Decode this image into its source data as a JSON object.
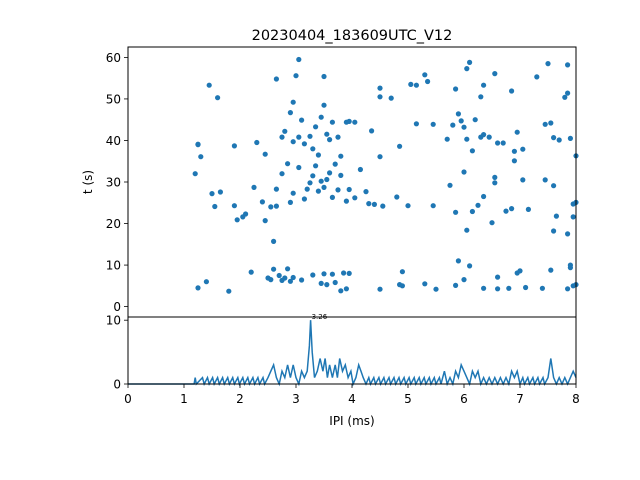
{
  "chart_data": [
    {
      "type": "scatter",
      "title": "20230404_183609UTC_V12",
      "xlabel": "",
      "ylabel": "t (s)",
      "xlim": [
        0,
        8
      ],
      "ylim": [
        62.5,
        -2.5
      ],
      "y_inverted": true,
      "yticks": [
        "0",
        "10",
        "20",
        "30",
        "40",
        "50",
        "60"
      ],
      "marker_color": "#1f77b4",
      "points": [
        [
          1.25,
          4.5
        ],
        [
          1.4,
          6
        ],
        [
          1.8,
          3.7
        ],
        [
          2.2,
          8.3
        ],
        [
          2.5,
          6.9
        ],
        [
          2.55,
          6.5
        ],
        [
          2.6,
          9
        ],
        [
          2.7,
          7.5
        ],
        [
          2.75,
          6.3
        ],
        [
          2.8,
          6.9
        ],
        [
          2.85,
          9.1
        ],
        [
          2.9,
          6.1
        ],
        [
          2.95,
          7
        ],
        [
          3.1,
          6.4
        ],
        [
          3.3,
          7.6
        ],
        [
          3.45,
          5.6
        ],
        [
          3.5,
          7.9
        ],
        [
          3.55,
          5.3
        ],
        [
          3.65,
          7.8
        ],
        [
          3.7,
          5.8
        ],
        [
          3.8,
          3.8
        ],
        [
          3.85,
          8.1
        ],
        [
          3.9,
          4.3
        ],
        [
          3.95,
          8
        ],
        [
          4.5,
          4.2
        ],
        [
          4.85,
          5.3
        ],
        [
          4.9,
          8.4
        ],
        [
          4.9,
          5
        ],
        [
          5.3,
          5.5
        ],
        [
          5.5,
          4.2
        ],
        [
          5.85,
          5.1
        ],
        [
          5.9,
          11
        ],
        [
          6.0,
          6.5
        ],
        [
          6.1,
          9.8
        ],
        [
          6.35,
          4.4
        ],
        [
          6.6,
          4.3
        ],
        [
          6.6,
          7.1
        ],
        [
          6.8,
          4.4
        ],
        [
          6.95,
          8.1
        ],
        [
          7.0,
          8.6
        ],
        [
          7.1,
          4.6
        ],
        [
          7.4,
          4.4
        ],
        [
          7.55,
          8.8
        ],
        [
          7.85,
          4.3
        ],
        [
          7.9,
          10
        ],
        [
          7.95,
          5
        ],
        [
          8.0,
          5.3
        ],
        [
          7.9,
          9.4
        ],
        [
          2.6,
          15.7
        ],
        [
          1.95,
          20.9
        ],
        [
          2.05,
          21.6
        ],
        [
          2.1,
          22.3
        ],
        [
          2.45,
          20.7
        ],
        [
          7.6,
          18.2
        ],
        [
          7.85,
          17.5
        ],
        [
          7.65,
          21.8
        ],
        [
          7.95,
          21.6
        ],
        [
          6.05,
          18.4
        ],
        [
          6.5,
          20.2
        ],
        [
          1.2,
          32
        ],
        [
          1.25,
          39
        ],
        [
          1.5,
          27.2
        ],
        [
          1.55,
          24.1
        ],
        [
          1.65,
          27.6
        ],
        [
          1.9,
          24.3
        ],
        [
          2.25,
          28.7
        ],
        [
          2.4,
          25.2
        ],
        [
          2.55,
          24
        ],
        [
          2.65,
          24.2
        ],
        [
          2.65,
          28.3
        ],
        [
          2.75,
          32
        ],
        [
          2.85,
          34.4
        ],
        [
          2.9,
          25.1
        ],
        [
          2.95,
          27.3
        ],
        [
          3.05,
          33.5
        ],
        [
          3.15,
          25.9
        ],
        [
          3.2,
          28.3
        ],
        [
          3.25,
          29.8
        ],
        [
          3.3,
          31.5
        ],
        [
          3.35,
          33.9
        ],
        [
          3.4,
          27.8
        ],
        [
          3.45,
          30.2
        ],
        [
          3.5,
          28.7
        ],
        [
          3.55,
          30.6
        ],
        [
          3.6,
          32.2
        ],
        [
          3.65,
          26.3
        ],
        [
          3.7,
          34.3
        ],
        [
          3.75,
          28.1
        ],
        [
          3.8,
          31.6
        ],
        [
          3.9,
          25.4
        ],
        [
          3.95,
          28.2
        ],
        [
          4.05,
          26.2
        ],
        [
          4.15,
          33
        ],
        [
          4.25,
          27.7
        ],
        [
          4.3,
          24.8
        ],
        [
          4.4,
          24.6
        ],
        [
          4.55,
          24.2
        ],
        [
          4.8,
          26.4
        ],
        [
          5.0,
          24.3
        ],
        [
          5.45,
          24.3
        ],
        [
          5.75,
          29.2
        ],
        [
          5.85,
          22.7
        ],
        [
          6.0,
          32.4
        ],
        [
          6.15,
          22.9
        ],
        [
          6.25,
          24.4
        ],
        [
          6.35,
          26.5
        ],
        [
          6.55,
          29.8
        ],
        [
          6.55,
          31.1
        ],
        [
          6.75,
          23
        ],
        [
          6.85,
          23.6
        ],
        [
          6.9,
          35.1
        ],
        [
          7.05,
          30.5
        ],
        [
          7.15,
          23.4
        ],
        [
          7.45,
          30.5
        ],
        [
          7.6,
          29.1
        ],
        [
          7.95,
          24.7
        ],
        [
          8.0,
          25.1
        ],
        [
          1.3,
          36.1
        ],
        [
          1.25,
          39.1
        ],
        [
          1.9,
          38.7
        ],
        [
          2.3,
          39.5
        ],
        [
          2.45,
          36.7
        ],
        [
          2.75,
          40.8
        ],
        [
          2.8,
          42.2
        ],
        [
          2.9,
          46.7
        ],
        [
          2.95,
          39.7
        ],
        [
          3.05,
          40.8
        ],
        [
          3.1,
          44.9
        ],
        [
          3.15,
          39.2
        ],
        [
          3.25,
          41
        ],
        [
          3.3,
          38
        ],
        [
          3.35,
          43.3
        ],
        [
          3.4,
          36.5
        ],
        [
          3.45,
          45.6
        ],
        [
          3.5,
          48.5
        ],
        [
          3.55,
          41.5
        ],
        [
          3.6,
          40.2
        ],
        [
          3.65,
          44.4
        ],
        [
          3.75,
          40.8
        ],
        [
          3.8,
          36.2
        ],
        [
          3.9,
          44.4
        ],
        [
          3.95,
          44.6
        ],
        [
          4.05,
          44.4
        ],
        [
          4.35,
          42.3
        ],
        [
          4.5,
          36.1
        ],
        [
          4.85,
          38.6
        ],
        [
          5.15,
          44
        ],
        [
          5.45,
          43.9
        ],
        [
          5.7,
          40.3
        ],
        [
          5.8,
          43.7
        ],
        [
          5.9,
          46.4
        ],
        [
          5.95,
          44.7
        ],
        [
          6.0,
          43.2
        ],
        [
          6.05,
          40.3
        ],
        [
          6.15,
          37.5
        ],
        [
          6.2,
          45
        ],
        [
          6.3,
          40.8
        ],
        [
          6.35,
          41.4
        ],
        [
          6.45,
          40.8
        ],
        [
          6.6,
          39.4
        ],
        [
          6.7,
          39.4
        ],
        [
          6.9,
          37.4
        ],
        [
          6.95,
          42
        ],
        [
          7.05,
          37.9
        ],
        [
          7.45,
          43.9
        ],
        [
          7.55,
          44.2
        ],
        [
          7.6,
          40.7
        ],
        [
          7.7,
          40.1
        ],
        [
          7.9,
          40.5
        ],
        [
          8.0,
          36.3
        ],
        [
          1.45,
          53.3
        ],
        [
          1.6,
          50.3
        ],
        [
          2.65,
          54.8
        ],
        [
          2.95,
          49.2
        ],
        [
          3.0,
          55.6
        ],
        [
          3.05,
          59.5
        ],
        [
          3.5,
          55.4
        ],
        [
          4.5,
          50.5
        ],
        [
          4.5,
          52.6
        ],
        [
          4.7,
          50.2
        ],
        [
          5.05,
          53.5
        ],
        [
          5.15,
          53.3
        ],
        [
          5.3,
          55.8
        ],
        [
          5.35,
          54.2
        ],
        [
          5.85,
          52.4
        ],
        [
          6.05,
          57.3
        ],
        [
          6.1,
          58.8
        ],
        [
          6.3,
          50.5
        ],
        [
          6.35,
          53.3
        ],
        [
          6.55,
          56.1
        ],
        [
          6.85,
          51.9
        ],
        [
          7.3,
          55.3
        ],
        [
          7.5,
          58.5
        ],
        [
          7.8,
          50.4
        ],
        [
          7.85,
          51.4
        ],
        [
          7.85,
          58.2
        ]
      ]
    },
    {
      "type": "line",
      "xlabel": "IPI (ms)",
      "ylabel": "",
      "xlim": [
        0,
        8
      ],
      "ylim": [
        0,
        10.5
      ],
      "xticks": [
        "0",
        "1",
        "2",
        "3",
        "4",
        "5",
        "6",
        "7",
        "8"
      ],
      "yticks": [
        "0",
        "10"
      ],
      "line_color": "#1f77b4",
      "peak_label": "3.26",
      "peak": [
        3.26,
        10
      ],
      "points": [
        [
          0,
          0
        ],
        [
          1.18,
          0
        ],
        [
          1.2,
          1
        ],
        [
          1.22,
          0
        ],
        [
          1.33,
          1
        ],
        [
          1.36,
          0
        ],
        [
          1.42,
          1
        ],
        [
          1.45,
          0
        ],
        [
          1.51,
          1
        ],
        [
          1.54,
          0
        ],
        [
          1.6,
          1
        ],
        [
          1.63,
          0
        ],
        [
          1.69,
          1
        ],
        [
          1.72,
          0
        ],
        [
          1.78,
          1
        ],
        [
          1.81,
          0
        ],
        [
          1.87,
          1
        ],
        [
          1.9,
          0
        ],
        [
          1.96,
          1
        ],
        [
          1.99,
          0
        ],
        [
          2.05,
          1
        ],
        [
          2.08,
          0
        ],
        [
          2.14,
          1
        ],
        [
          2.17,
          0
        ],
        [
          2.23,
          1
        ],
        [
          2.26,
          0
        ],
        [
          2.32,
          1
        ],
        [
          2.35,
          0
        ],
        [
          2.41,
          1
        ],
        [
          2.44,
          0
        ],
        [
          2.5,
          1
        ],
        [
          2.55,
          2
        ],
        [
          2.6,
          3
        ],
        [
          2.65,
          1
        ],
        [
          2.7,
          0
        ],
        [
          2.75,
          2
        ],
        [
          2.8,
          1
        ],
        [
          2.85,
          3
        ],
        [
          2.9,
          1
        ],
        [
          2.95,
          3
        ],
        [
          3.0,
          1
        ],
        [
          3.05,
          0
        ],
        [
          3.1,
          2
        ],
        [
          3.15,
          1
        ],
        [
          3.2,
          2
        ],
        [
          3.24,
          6
        ],
        [
          3.26,
          10
        ],
        [
          3.29,
          5
        ],
        [
          3.33,
          1
        ],
        [
          3.38,
          2
        ],
        [
          3.43,
          4
        ],
        [
          3.48,
          2
        ],
        [
          3.52,
          4
        ],
        [
          3.56,
          1
        ],
        [
          3.6,
          3
        ],
        [
          3.65,
          1
        ],
        [
          3.7,
          3
        ],
        [
          3.74,
          1
        ],
        [
          3.78,
          4
        ],
        [
          3.83,
          2
        ],
        [
          3.88,
          3
        ],
        [
          3.93,
          1
        ],
        [
          3.98,
          2
        ],
        [
          4.02,
          0
        ],
        [
          4.07,
          1
        ],
        [
          4.12,
          3
        ],
        [
          4.16,
          2
        ],
        [
          4.2,
          1
        ],
        [
          4.25,
          0
        ],
        [
          4.3,
          1
        ],
        [
          4.33,
          0
        ],
        [
          4.39,
          1
        ],
        [
          4.42,
          0
        ],
        [
          4.48,
          1
        ],
        [
          4.51,
          0
        ],
        [
          4.57,
          1
        ],
        [
          4.6,
          0
        ],
        [
          4.66,
          1
        ],
        [
          4.69,
          0
        ],
        [
          4.75,
          1
        ],
        [
          4.78,
          0
        ],
        [
          4.84,
          1
        ],
        [
          4.87,
          0
        ],
        [
          4.93,
          1
        ],
        [
          4.96,
          0
        ],
        [
          5.02,
          1
        ],
        [
          5.05,
          0
        ],
        [
          5.11,
          1
        ],
        [
          5.14,
          0
        ],
        [
          5.2,
          1
        ],
        [
          5.23,
          0
        ],
        [
          5.29,
          1
        ],
        [
          5.32,
          0
        ],
        [
          5.38,
          1
        ],
        [
          5.41,
          0
        ],
        [
          5.47,
          1
        ],
        [
          5.5,
          0
        ],
        [
          5.56,
          1
        ],
        [
          5.59,
          0
        ],
        [
          5.65,
          2
        ],
        [
          5.7,
          0
        ],
        [
          5.75,
          1
        ],
        [
          5.8,
          0
        ],
        [
          5.85,
          2
        ],
        [
          5.9,
          1
        ],
        [
          5.95,
          3
        ],
        [
          6.0,
          2
        ],
        [
          6.05,
          1
        ],
        [
          6.1,
          0
        ],
        [
          6.15,
          2
        ],
        [
          6.2,
          1
        ],
        [
          6.25,
          2
        ],
        [
          6.3,
          0
        ],
        [
          6.35,
          1
        ],
        [
          6.4,
          0
        ],
        [
          6.45,
          1
        ],
        [
          6.5,
          0
        ],
        [
          6.55,
          1
        ],
        [
          6.6,
          0
        ],
        [
          6.65,
          1
        ],
        [
          6.7,
          0
        ],
        [
          6.75,
          1
        ],
        [
          6.8,
          0
        ],
        [
          6.85,
          2
        ],
        [
          6.9,
          1
        ],
        [
          6.95,
          2
        ],
        [
          7.0,
          0
        ],
        [
          7.05,
          1
        ],
        [
          7.08,
          0
        ],
        [
          7.14,
          1
        ],
        [
          7.17,
          0
        ],
        [
          7.23,
          1
        ],
        [
          7.26,
          0
        ],
        [
          7.32,
          1
        ],
        [
          7.35,
          0
        ],
        [
          7.41,
          1
        ],
        [
          7.44,
          0
        ],
        [
          7.5,
          1
        ],
        [
          7.55,
          4
        ],
        [
          7.6,
          1
        ],
        [
          7.65,
          0
        ],
        [
          7.7,
          1
        ],
        [
          7.75,
          0
        ],
        [
          7.8,
          1
        ],
        [
          7.85,
          0
        ],
        [
          7.9,
          1
        ],
        [
          7.95,
          2
        ],
        [
          8.0,
          1
        ]
      ]
    }
  ]
}
